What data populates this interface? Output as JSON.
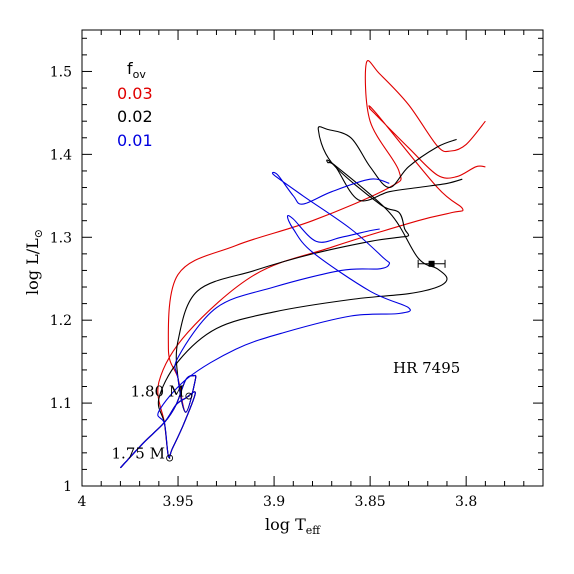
{
  "chart_data": {
    "type": "line",
    "title": "",
    "xlabel_main": "log  T",
    "xlabel_sub": "eff",
    "ylabel_main": "log  L/L",
    "ylabel_sym": "⊙",
    "xlim": [
      4.0,
      3.76
    ],
    "ylim": [
      1.0,
      1.55
    ],
    "x_reversed": true,
    "xticks": [
      4.0,
      3.95,
      3.9,
      3.85,
      3.8
    ],
    "xtick_labels": [
      "4",
      "3.95",
      "3.9",
      "3.85",
      "3.8"
    ],
    "yticks": [
      1.0,
      1.1,
      1.2,
      1.3,
      1.4,
      1.5
    ],
    "ytick_labels": [
      "1",
      "1.1",
      "1.2",
      "1.3",
      "1.4",
      "1.5"
    ],
    "legend": {
      "title_main": "f",
      "title_sub": "ov",
      "placement": "top-left",
      "entries": [
        {
          "label": "0.03",
          "color": "#e00000"
        },
        {
          "label": "0.02",
          "color": "#000000"
        },
        {
          "label": "0.01",
          "color": "#0000e0"
        }
      ]
    },
    "annotations": [
      {
        "main": "1.80 M",
        "sym": "⊙",
        "x": 3.942,
        "y": 1.108
      },
      {
        "main": "1.75 M",
        "sym": "⊙",
        "x": 3.952,
        "y": 1.033
      }
    ],
    "star": {
      "label": "HR 7495",
      "x": 3.818,
      "y": 1.268,
      "xerr": 0.007,
      "yerr": 0.003
    },
    "series": [
      {
        "name": "0.03",
        "color": "#e00000",
        "points": [
          [
            3.98,
            1.022
          ],
          [
            3.968,
            1.052
          ],
          [
            3.957,
            1.077
          ],
          [
            3.951,
            1.098
          ],
          [
            3.946,
            1.128
          ],
          [
            3.942,
            1.133
          ],
          [
            3.941,
            1.128
          ],
          [
            3.946,
            1.089
          ],
          [
            3.95,
            1.13
          ],
          [
            3.955,
            1.166
          ],
          [
            3.95,
            1.255
          ],
          [
            3.92,
            1.29
          ],
          [
            3.88,
            1.32
          ],
          [
            3.84,
            1.36
          ],
          [
            3.835,
            1.38
          ],
          [
            3.85,
            1.44
          ],
          [
            3.852,
            1.51
          ],
          [
            3.845,
            1.497
          ],
          [
            3.83,
            1.46
          ],
          [
            3.815,
            1.41
          ],
          [
            3.808,
            1.404
          ],
          [
            3.8,
            1.412
          ],
          [
            3.79,
            1.44
          ]
        ]
      },
      {
        "name": "0.03",
        "color": "#e00000",
        "points": [
          [
            3.98,
            1.022
          ],
          [
            3.968,
            1.052
          ],
          [
            3.957,
            1.077
          ],
          [
            3.951,
            1.098
          ],
          [
            3.946,
            1.106
          ],
          [
            3.941,
            1.112
          ],
          [
            3.947,
            1.075
          ],
          [
            3.953,
            1.045
          ],
          [
            3.955,
            1.036
          ],
          [
            3.957,
            1.075
          ],
          [
            3.96,
            1.125
          ],
          [
            3.945,
            1.185
          ],
          [
            3.91,
            1.255
          ],
          [
            3.87,
            1.288
          ],
          [
            3.825,
            1.32
          ],
          [
            3.807,
            1.33
          ],
          [
            3.802,
            1.335
          ],
          [
            3.815,
            1.36
          ],
          [
            3.847,
            1.45
          ],
          [
            3.85,
            1.455
          ],
          [
            3.848,
            1.45
          ],
          [
            3.83,
            1.408
          ],
          [
            3.815,
            1.375
          ],
          [
            3.805,
            1.373
          ],
          [
            3.795,
            1.385
          ],
          [
            3.79,
            1.385
          ]
        ]
      },
      {
        "name": "0.02",
        "color": "#000000",
        "points": [
          [
            3.98,
            1.022
          ],
          [
            3.968,
            1.052
          ],
          [
            3.957,
            1.077
          ],
          [
            3.951,
            1.098
          ],
          [
            3.946,
            1.128
          ],
          [
            3.942,
            1.133
          ],
          [
            3.941,
            1.128
          ],
          [
            3.946,
            1.089
          ],
          [
            3.95,
            1.13
          ],
          [
            3.95,
            1.175
          ],
          [
            3.94,
            1.235
          ],
          [
            3.91,
            1.26
          ],
          [
            3.88,
            1.28
          ],
          [
            3.85,
            1.295
          ],
          [
            3.835,
            1.3
          ],
          [
            3.83,
            1.302
          ],
          [
            3.832,
            1.31
          ],
          [
            3.835,
            1.33
          ],
          [
            3.845,
            1.34
          ],
          [
            3.87,
            1.39
          ],
          [
            3.877,
            1.43
          ],
          [
            3.872,
            1.43
          ],
          [
            3.86,
            1.42
          ],
          [
            3.85,
            1.385
          ],
          [
            3.84,
            1.36
          ],
          [
            3.83,
            1.385
          ],
          [
            3.815,
            1.409
          ],
          [
            3.805,
            1.418
          ]
        ]
      },
      {
        "name": "0.02",
        "color": "#000000",
        "points": [
          [
            3.98,
            1.022
          ],
          [
            3.968,
            1.052
          ],
          [
            3.957,
            1.077
          ],
          [
            3.951,
            1.098
          ],
          [
            3.946,
            1.106
          ],
          [
            3.941,
            1.112
          ],
          [
            3.947,
            1.075
          ],
          [
            3.953,
            1.045
          ],
          [
            3.955,
            1.036
          ],
          [
            3.957,
            1.075
          ],
          [
            3.96,
            1.105
          ],
          [
            3.95,
            1.15
          ],
          [
            3.93,
            1.19
          ],
          [
            3.9,
            1.21
          ],
          [
            3.86,
            1.225
          ],
          [
            3.83,
            1.232
          ],
          [
            3.815,
            1.24
          ],
          [
            3.81,
            1.25
          ],
          [
            3.815,
            1.262
          ],
          [
            3.825,
            1.275
          ],
          [
            3.84,
            1.33
          ],
          [
            3.869,
            1.388
          ],
          [
            3.872,
            1.39
          ],
          [
            3.868,
            1.385
          ],
          [
            3.856,
            1.345
          ],
          [
            3.84,
            1.355
          ],
          [
            3.825,
            1.36
          ],
          [
            3.81,
            1.365
          ],
          [
            3.802,
            1.37
          ]
        ]
      },
      {
        "name": "0.01",
        "color": "#0000e0",
        "points": [
          [
            3.98,
            1.022
          ],
          [
            3.968,
            1.052
          ],
          [
            3.957,
            1.077
          ],
          [
            3.951,
            1.098
          ],
          [
            3.946,
            1.128
          ],
          [
            3.942,
            1.133
          ],
          [
            3.941,
            1.128
          ],
          [
            3.946,
            1.089
          ],
          [
            3.95,
            1.13
          ],
          [
            3.95,
            1.155
          ],
          [
            3.93,
            1.215
          ],
          [
            3.9,
            1.24
          ],
          [
            3.865,
            1.26
          ],
          [
            3.845,
            1.262
          ],
          [
            3.84,
            1.268
          ],
          [
            3.843,
            1.275
          ],
          [
            3.86,
            1.31
          ],
          [
            3.885,
            1.35
          ],
          [
            3.9,
            1.375
          ],
          [
            3.898,
            1.375
          ],
          [
            3.89,
            1.35
          ],
          [
            3.885,
            1.34
          ],
          [
            3.87,
            1.355
          ],
          [
            3.85,
            1.37
          ],
          [
            3.84,
            1.365
          ]
        ]
      },
      {
        "name": "0.01",
        "color": "#0000e0",
        "points": [
          [
            3.98,
            1.022
          ],
          [
            3.968,
            1.052
          ],
          [
            3.957,
            1.077
          ],
          [
            3.951,
            1.098
          ],
          [
            3.946,
            1.106
          ],
          [
            3.941,
            1.112
          ],
          [
            3.947,
            1.075
          ],
          [
            3.953,
            1.045
          ],
          [
            3.955,
            1.036
          ],
          [
            3.957,
            1.075
          ],
          [
            3.96,
            1.09
          ],
          [
            3.945,
            1.13
          ],
          [
            3.92,
            1.165
          ],
          [
            3.895,
            1.185
          ],
          [
            3.86,
            1.205
          ],
          [
            3.835,
            1.208
          ],
          [
            3.83,
            1.215
          ],
          [
            3.85,
            1.235
          ],
          [
            3.88,
            1.282
          ],
          [
            3.89,
            1.31
          ],
          [
            3.893,
            1.325
          ],
          [
            3.89,
            1.322
          ],
          [
            3.878,
            1.295
          ],
          [
            3.865,
            1.3
          ],
          [
            3.85,
            1.308
          ],
          [
            3.845,
            1.31
          ]
        ]
      }
    ]
  }
}
